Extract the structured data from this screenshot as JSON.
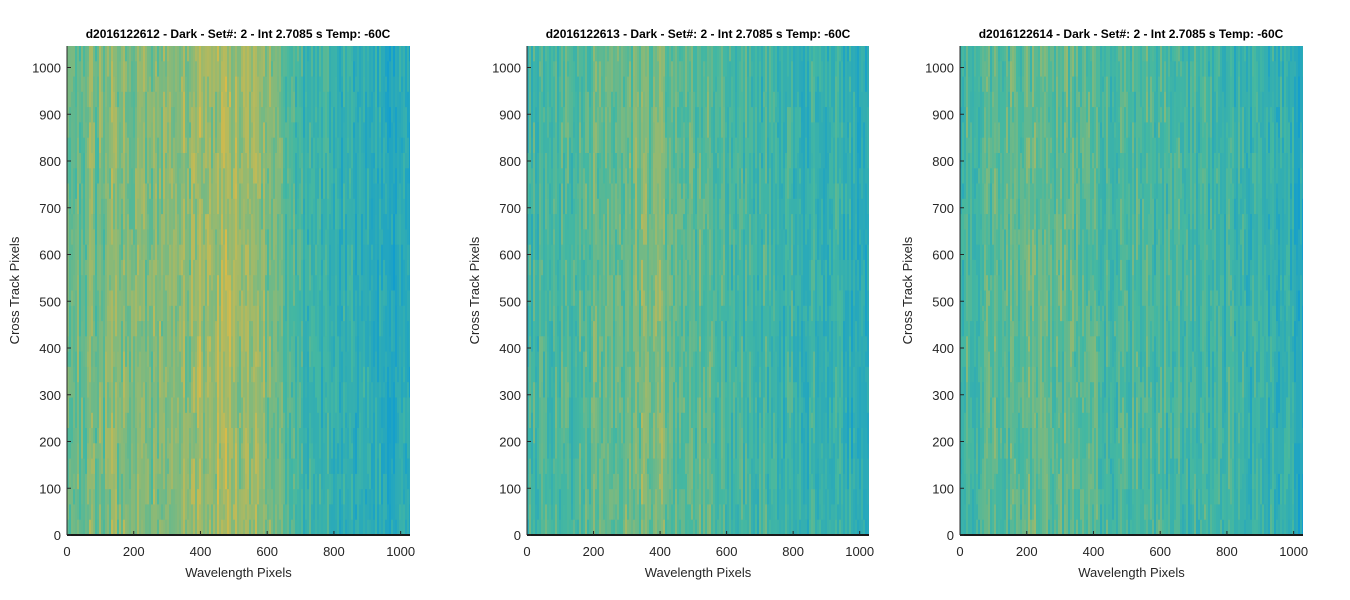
{
  "figure": {
    "colormap": "parula",
    "colors": {
      "low": "#0c9ad4",
      "mid": "#46b8a0",
      "high": "#d8ba48",
      "axis": "#262626",
      "baseline": "#1a1a1a"
    }
  },
  "chart_data": [
    {
      "type": "heatmap",
      "title": "d2016122612 - Dark - Set#: 2 - Int 2.7085 s Temp: -60C",
      "xlabel": "Wavelength Pixels",
      "ylabel": "Cross Track Pixels",
      "xlim": [
        0,
        1028
      ],
      "ylim": [
        0,
        1046
      ],
      "xticks": [
        0,
        200,
        400,
        600,
        800,
        1000
      ],
      "yticks": [
        0,
        100,
        200,
        300,
        400,
        500,
        600,
        700,
        800,
        900,
        1000
      ],
      "color_profile": {
        "x": [
          0,
          100,
          200,
          300,
          400,
          500,
          600,
          650,
          700,
          800,
          900,
          1000,
          1028
        ],
        "level": [
          0.6,
          0.68,
          0.74,
          0.7,
          0.78,
          0.82,
          0.72,
          0.6,
          0.42,
          0.36,
          0.32,
          0.24,
          0.2
        ]
      }
    },
    {
      "type": "heatmap",
      "title": "d2016122613 - Dark - Set#: 2 - Int 2.7085 s Temp: -60C",
      "xlabel": "Wavelength Pixels",
      "ylabel": "Cross Track Pixels",
      "xlim": [
        0,
        1028
      ],
      "ylim": [
        0,
        1046
      ],
      "xticks": [
        0,
        200,
        400,
        600,
        800,
        1000
      ],
      "yticks": [
        0,
        100,
        200,
        300,
        400,
        500,
        600,
        700,
        800,
        900,
        1000
      ],
      "color_profile": {
        "x": [
          0,
          100,
          200,
          300,
          400,
          500,
          600,
          700,
          800,
          900,
          1000,
          1028
        ],
        "level": [
          0.45,
          0.52,
          0.58,
          0.64,
          0.68,
          0.58,
          0.48,
          0.44,
          0.4,
          0.37,
          0.32,
          0.28
        ]
      }
    },
    {
      "type": "heatmap",
      "title": "d2016122614 - Dark - Set#: 2 - Int 2.7085 s Temp: -60C",
      "xlabel": "Wavelength Pixels",
      "ylabel": "Cross Track Pixels",
      "xlim": [
        0,
        1028
      ],
      "ylim": [
        0,
        1046
      ],
      "xticks": [
        0,
        200,
        400,
        600,
        800,
        1000
      ],
      "yticks": [
        0,
        100,
        200,
        300,
        400,
        500,
        600,
        700,
        800,
        900,
        1000
      ],
      "color_profile": {
        "x": [
          0,
          100,
          200,
          300,
          400,
          500,
          600,
          700,
          800,
          900,
          1000,
          1028
        ],
        "level": [
          0.48,
          0.55,
          0.58,
          0.56,
          0.52,
          0.5,
          0.48,
          0.46,
          0.42,
          0.38,
          0.3,
          0.24
        ]
      }
    }
  ]
}
